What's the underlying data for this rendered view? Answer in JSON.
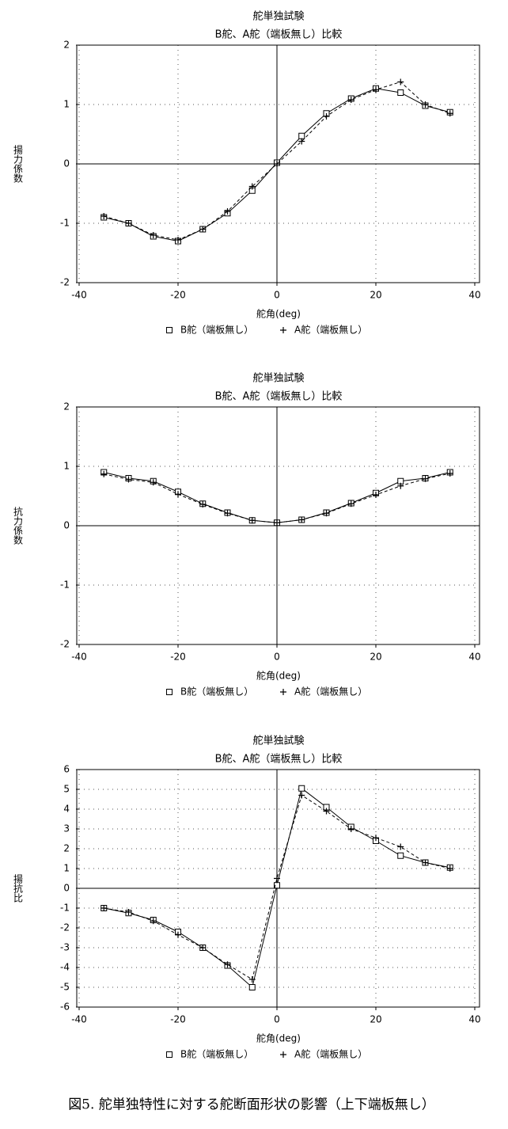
{
  "chart_data": [
    {
      "type": "line",
      "title": "舵単独試験",
      "subtitle": "B舵、A舵（端板無し）比較",
      "xlabel": "舵角(deg)",
      "ylabel": "揚力係数",
      "x": [
        -35,
        -30,
        -25,
        -20,
        -15,
        -10,
        -5,
        0,
        5,
        10,
        15,
        20,
        25,
        30,
        35
      ],
      "xlim": [
        -40,
        40
      ],
      "xticks": [
        -40,
        -20,
        0,
        20,
        40
      ],
      "ylim": [
        -2,
        2
      ],
      "yticks": [
        -2,
        -1,
        0,
        1,
        2
      ],
      "grid": true,
      "series": [
        {
          "name": "B舵（端板無し）",
          "color": "#000000",
          "marker": "square",
          "line_style": "solid",
          "values": [
            -0.9,
            -1.0,
            -1.22,
            -1.3,
            -1.1,
            -0.83,
            -0.45,
            0.02,
            0.47,
            0.85,
            1.1,
            1.27,
            1.2,
            0.98,
            0.87
          ]
        },
        {
          "name": "A舵（端板無し）",
          "color": "#000000",
          "marker": "plus",
          "line_style": "dashed",
          "values": [
            -0.88,
            -1.0,
            -1.2,
            -1.28,
            -1.1,
            -0.8,
            -0.38,
            0.0,
            0.38,
            0.8,
            1.08,
            1.25,
            1.38,
            1.0,
            0.85
          ]
        }
      ]
    },
    {
      "type": "line",
      "title": "舵単独試験",
      "subtitle": "B舵、A舵（端板無し）比較",
      "xlabel": "舵角(deg)",
      "ylabel": "抗力係数",
      "x": [
        -35,
        -30,
        -25,
        -20,
        -15,
        -10,
        -5,
        0,
        5,
        10,
        15,
        20,
        25,
        30,
        35
      ],
      "xlim": [
        -40,
        40
      ],
      "xticks": [
        -40,
        -20,
        0,
        20,
        40
      ],
      "ylim": [
        -2,
        2
      ],
      "yticks": [
        -2,
        -1,
        0,
        1,
        2
      ],
      "grid": true,
      "series": [
        {
          "name": "B舵（端板無し）",
          "color": "#000000",
          "marker": "square",
          "line_style": "solid",
          "values": [
            0.9,
            0.8,
            0.75,
            0.57,
            0.37,
            0.22,
            0.09,
            0.05,
            0.1,
            0.22,
            0.38,
            0.55,
            0.75,
            0.8,
            0.9
          ]
        },
        {
          "name": "A舵（端板無し）",
          "color": "#000000",
          "marker": "plus",
          "line_style": "dashed",
          "values": [
            0.87,
            0.78,
            0.73,
            0.53,
            0.36,
            0.21,
            0.09,
            0.05,
            0.1,
            0.21,
            0.37,
            0.52,
            0.67,
            0.79,
            0.88
          ]
        }
      ]
    },
    {
      "type": "line",
      "title": "舵単独試験",
      "subtitle": "B舵、A舵（端板無し）比較",
      "xlabel": "舵角(deg)",
      "ylabel": "揚抗比",
      "x": [
        -35,
        -30,
        -25,
        -20,
        -15,
        -10,
        -5,
        0,
        5,
        10,
        15,
        20,
        25,
        30,
        35
      ],
      "xlim": [
        -40,
        40
      ],
      "xticks": [
        -40,
        -20,
        0,
        20,
        40
      ],
      "ylim": [
        -6,
        6
      ],
      "yticks": [
        -6,
        -5,
        -4,
        -3,
        -2,
        -1,
        0,
        1,
        2,
        3,
        4,
        5,
        6
      ],
      "grid": true,
      "series": [
        {
          "name": "B舵（端板無し）",
          "color": "#000000",
          "marker": "square",
          "line_style": "solid",
          "values": [
            -1.0,
            -1.25,
            -1.6,
            -2.2,
            -3.0,
            -3.9,
            -5.0,
            0.15,
            5.05,
            4.1,
            3.1,
            2.4,
            1.65,
            1.3,
            1.05
          ]
        },
        {
          "name": "A舵（端板無し）",
          "color": "#000000",
          "marker": "plus",
          "line_style": "dashed",
          "values": [
            -1.0,
            -1.2,
            -1.65,
            -2.35,
            -3.0,
            -3.85,
            -4.6,
            0.5,
            4.7,
            3.9,
            3.0,
            2.55,
            2.1,
            1.3,
            1.0
          ]
        }
      ]
    }
  ],
  "caption": "図5. 舵単独特性に対する舵断面形状の影響（上下端板無し）"
}
